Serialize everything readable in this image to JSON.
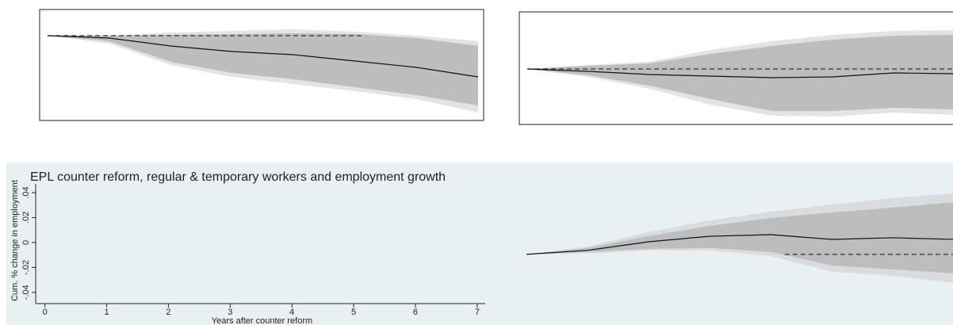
{
  "chart_data": [
    {
      "type": "line",
      "frame": true,
      "x": [
        0,
        1,
        2,
        3,
        4,
        5,
        6,
        7
      ],
      "xlim": [
        -0.13,
        7.09
      ],
      "ylim": [
        -1.07,
        0.33
      ],
      "values": [
        0,
        -0.03,
        -0.13,
        -0.2,
        -0.24,
        -0.32,
        -0.4,
        -0.52
      ],
      "inner_upper": [
        0,
        0,
        0.01,
        0.02,
        0.03,
        0.02,
        -0.03,
        -0.13
      ],
      "inner_lower": [
        0,
        -0.07,
        -0.33,
        -0.47,
        -0.55,
        -0.65,
        -0.75,
        -0.88
      ],
      "outer_upper": [
        0,
        0,
        0.04,
        0.06,
        0.08,
        0.05,
        0,
        -0.07
      ],
      "outer_lower": [
        0,
        -0.1,
        -0.37,
        -0.52,
        -0.61,
        -0.7,
        -0.8,
        -0.97
      ],
      "reference": {
        "y": 0,
        "x": [
          0,
          5.1
        ]
      }
    },
    {
      "type": "line",
      "frame": true,
      "x": [
        0,
        1,
        2,
        3,
        4,
        5,
        6,
        7
      ],
      "xlim": [
        -0.13,
        7.09
      ],
      "ylim": [
        -0.7,
        0.72
      ],
      "values": [
        0,
        -0.03,
        -0.07,
        -0.09,
        -0.11,
        -0.1,
        -0.05,
        -0.06
      ],
      "inner_upper": [
        0,
        0.04,
        0.07,
        0.19,
        0.29,
        0.37,
        0.42,
        0.43
      ],
      "inner_lower": [
        0,
        -0.08,
        -0.21,
        -0.38,
        -0.53,
        -0.53,
        -0.49,
        -0.51
      ],
      "outer_upper": [
        0,
        0.05,
        0.09,
        0.24,
        0.35,
        0.43,
        0.48,
        0.49
      ],
      "outer_lower": [
        0,
        -0.1,
        -0.25,
        -0.45,
        -0.59,
        -0.6,
        -0.55,
        -0.58
      ],
      "reference": {
        "y": 0,
        "x": [
          0,
          7.1
        ]
      }
    },
    {
      "type": "axes",
      "title": "EPL counter reform, regular & temporary workers and employment growth",
      "y_label": "Cum. % change in employment",
      "x_label": "Years after counter reform",
      "xlim": [
        -0.15,
        7.13
      ],
      "ylim": [
        -0.049,
        0.047
      ],
      "xticks": [
        0,
        1,
        2,
        3,
        4,
        5,
        6,
        7
      ],
      "yticks": [
        {
          "value": 0.04,
          "label": ".04"
        },
        {
          "value": 0.02,
          "label": ".02"
        },
        0,
        {
          "value": -0.02,
          "label": "-.02"
        },
        {
          "value": -0.04,
          "label": "-.04"
        }
      ]
    },
    {
      "type": "line",
      "frame": false,
      "x": [
        0,
        1,
        2,
        3,
        4,
        5,
        6,
        7
      ],
      "xlim": [
        -0.13,
        7.1
      ],
      "ylim": [
        -0.049,
        0.047
      ],
      "values": [
        -0.0095,
        -0.0063,
        0.0006,
        0.005,
        0.0063,
        0.0025,
        0.0038,
        0.0025
      ],
      "inner_upper": [
        -0.0095,
        -0.0044,
        0.0051,
        0.0133,
        0.0197,
        0.0241,
        0.0279,
        0.0324
      ],
      "inner_lower": [
        -0.0095,
        -0.0076,
        -0.0051,
        -0.0044,
        -0.0076,
        -0.0184,
        -0.0216,
        -0.0248
      ],
      "outer_upper": [
        -0.0095,
        -0.0032,
        0.0083,
        0.0178,
        0.0248,
        0.0305,
        0.0356,
        0.0394
      ],
      "outer_lower": [
        -0.0095,
        -0.0089,
        -0.0063,
        -0.0063,
        -0.0108,
        -0.0235,
        -0.0267,
        -0.0324
      ],
      "reference": {
        "y": -0.0095,
        "x": [
          4.23,
          7.1
        ]
      }
    }
  ]
}
